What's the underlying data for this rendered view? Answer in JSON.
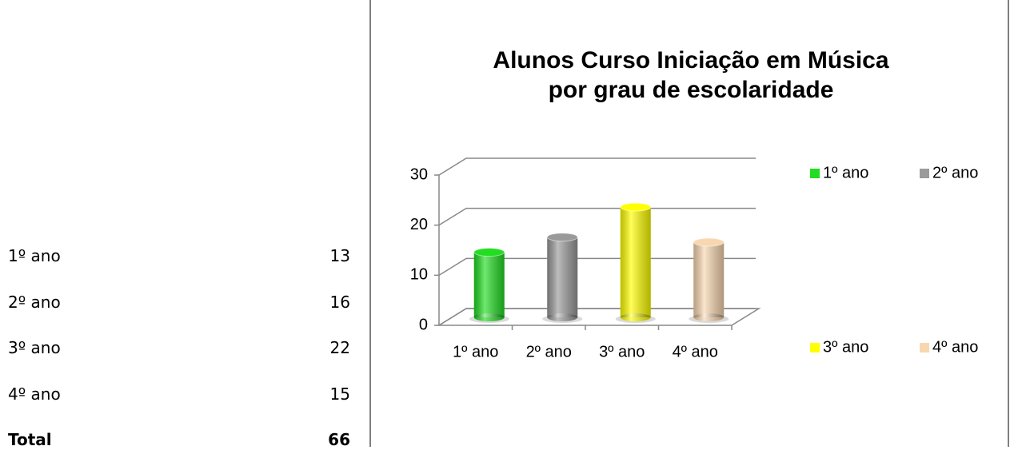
{
  "table": {
    "rows": [
      [
        "1º ano",
        13
      ],
      [
        "2º ano",
        16
      ],
      [
        "3º ano",
        22
      ],
      [
        "4º ano",
        15
      ]
    ],
    "total": [
      "Total",
      66
    ]
  },
  "chart_data": {
    "type": "bar3d",
    "title": [
      "Alunos Curso Iniciação em Música",
      "por grau de escolaridade"
    ],
    "categories": [
      "1º ano",
      "2º ano",
      "3º ano",
      "4º ano"
    ],
    "values": [
      13,
      16,
      22,
      15
    ],
    "colors": [
      "#22dd22",
      "#9a9a9a",
      "#ffff00",
      "#f8d7b0"
    ],
    "ylim": [
      0,
      30
    ],
    "yticks": [
      0,
      10,
      20,
      30
    ],
    "grid": true,
    "legend": "right"
  }
}
